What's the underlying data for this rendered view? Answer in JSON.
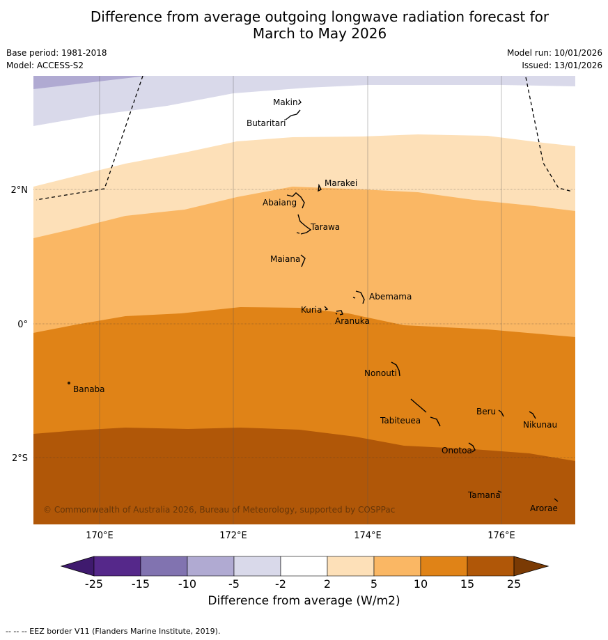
{
  "title": {
    "line1": "Difference from average outgoing longwave radiation forecast for",
    "line2": "March to May 2026"
  },
  "meta": {
    "base_period": "Base period: 1981-2018",
    "model": "Model: ACCESS-S2",
    "model_run": "Model run: 10/01/2026",
    "issued": "Issued: 13/01/2026"
  },
  "map": {
    "lon_ticks": [
      "170°E",
      "172°E",
      "174°E",
      "176°E"
    ],
    "lat_ticks": [
      "2°N",
      "0°",
      "2°S"
    ],
    "copyright": "© Commonwealth of Australia 2026, Bureau of Meteorology, supported by COSPPac",
    "islands": [
      "Makin",
      "Butaritari",
      "Marakei",
      "Abaiang",
      "Tarawa",
      "Maiana",
      "Abemama",
      "Kuria",
      "Aranuka",
      "Nonouti",
      "Banaba",
      "Beru",
      "Nikunau",
      "Tabiteuea",
      "Onotoa",
      "Tamana",
      "Arorae"
    ]
  },
  "colorbar": {
    "ticks": [
      "-25",
      "-15",
      "-10",
      "-5",
      "-2",
      "2",
      "5",
      "10",
      "15",
      "25"
    ],
    "colors": [
      "#3f1a6e",
      "#55288a",
      "#8173b0",
      "#b0aad2",
      "#d9d9ea",
      "#ffffff",
      "#fde0b8",
      "#fab764",
      "#e08317",
      "#b05708",
      "#7a3a04"
    ],
    "title": "Difference from average (W/m2)"
  },
  "footnote": "-- -- -- EEZ border V11 (Flanders Marine Institute, 2019)."
}
